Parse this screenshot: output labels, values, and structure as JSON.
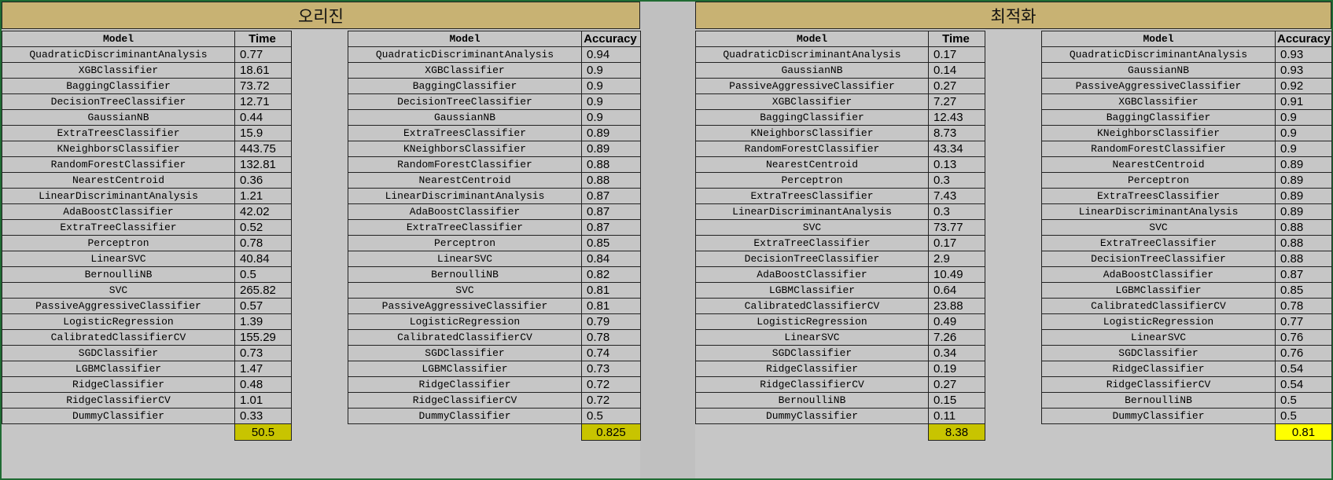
{
  "headers": {
    "original": "오리진",
    "optimized": "최적화"
  },
  "columns": {
    "model": "Model",
    "time": "Time",
    "accuracy": "Accuracy"
  },
  "colors": {
    "header_bg": "#c8b273",
    "cell_bg": "#c6c6c6",
    "sum_olive": "#c8c400",
    "sum_yellow": "#ffff00",
    "frame": "#1f6b33"
  },
  "original_time": {
    "rows": [
      [
        "QuadraticDiscriminantAnalysis",
        "0.77"
      ],
      [
        "XGBClassifier",
        "18.61"
      ],
      [
        "BaggingClassifier",
        "73.72"
      ],
      [
        "DecisionTreeClassifier",
        "12.71"
      ],
      [
        "GaussianNB",
        "0.44"
      ],
      [
        "ExtraTreesClassifier",
        "15.9"
      ],
      [
        "KNeighborsClassifier",
        "443.75"
      ],
      [
        "RandomForestClassifier",
        "132.81"
      ],
      [
        "NearestCentroid",
        "0.36"
      ],
      [
        "LinearDiscriminantAnalysis",
        "1.21"
      ],
      [
        "AdaBoostClassifier",
        "42.02"
      ],
      [
        "ExtraTreeClassifier",
        "0.52"
      ],
      [
        "Perceptron",
        "0.78"
      ],
      [
        "LinearSVC",
        "40.84"
      ],
      [
        "BernoulliNB",
        "0.5"
      ],
      [
        "SVC",
        "265.82"
      ],
      [
        "PassiveAggressiveClassifier",
        "0.57"
      ],
      [
        "LogisticRegression",
        "1.39"
      ],
      [
        "CalibratedClassifierCV",
        "155.29"
      ],
      [
        "SGDClassifier",
        "0.73"
      ],
      [
        "LGBMClassifier",
        "1.47"
      ],
      [
        "RidgeClassifier",
        "0.48"
      ],
      [
        "RidgeClassifierCV",
        "1.01"
      ],
      [
        "DummyClassifier",
        "0.33"
      ]
    ],
    "total": "50.5"
  },
  "original_accuracy": {
    "rows": [
      [
        "QuadraticDiscriminantAnalysis",
        "0.94"
      ],
      [
        "XGBClassifier",
        "0.9"
      ],
      [
        "BaggingClassifier",
        "0.9"
      ],
      [
        "DecisionTreeClassifier",
        "0.9"
      ],
      [
        "GaussianNB",
        "0.9"
      ],
      [
        "ExtraTreesClassifier",
        "0.89"
      ],
      [
        "KNeighborsClassifier",
        "0.89"
      ],
      [
        "RandomForestClassifier",
        "0.88"
      ],
      [
        "NearestCentroid",
        "0.88"
      ],
      [
        "LinearDiscriminantAnalysis",
        "0.87"
      ],
      [
        "AdaBoostClassifier",
        "0.87"
      ],
      [
        "ExtraTreeClassifier",
        "0.87"
      ],
      [
        "Perceptron",
        "0.85"
      ],
      [
        "LinearSVC",
        "0.84"
      ],
      [
        "BernoulliNB",
        "0.82"
      ],
      [
        "SVC",
        "0.81"
      ],
      [
        "PassiveAggressiveClassifier",
        "0.81"
      ],
      [
        "LogisticRegression",
        "0.79"
      ],
      [
        "CalibratedClassifierCV",
        "0.78"
      ],
      [
        "SGDClassifier",
        "0.74"
      ],
      [
        "LGBMClassifier",
        "0.73"
      ],
      [
        "RidgeClassifier",
        "0.72"
      ],
      [
        "RidgeClassifierCV",
        "0.72"
      ],
      [
        "DummyClassifier",
        "0.5"
      ]
    ],
    "total": "0.825"
  },
  "optimized_time": {
    "rows": [
      [
        "QuadraticDiscriminantAnalysis",
        "0.17"
      ],
      [
        "GaussianNB",
        "0.14"
      ],
      [
        "PassiveAggressiveClassifier",
        "0.27"
      ],
      [
        "XGBClassifier",
        "7.27"
      ],
      [
        "BaggingClassifier",
        "12.43"
      ],
      [
        "KNeighborsClassifier",
        "8.73"
      ],
      [
        "RandomForestClassifier",
        "43.34"
      ],
      [
        "NearestCentroid",
        "0.13"
      ],
      [
        "Perceptron",
        "0.3"
      ],
      [
        "ExtraTreesClassifier",
        "7.43"
      ],
      [
        "LinearDiscriminantAnalysis",
        "0.3"
      ],
      [
        "SVC",
        "73.77"
      ],
      [
        "ExtraTreeClassifier",
        "0.17"
      ],
      [
        "DecisionTreeClassifier",
        "2.9"
      ],
      [
        "AdaBoostClassifier",
        "10.49"
      ],
      [
        "LGBMClassifier",
        "0.64"
      ],
      [
        "CalibratedClassifierCV",
        "23.88"
      ],
      [
        "LogisticRegression",
        "0.49"
      ],
      [
        "LinearSVC",
        "7.26"
      ],
      [
        "SGDClassifier",
        "0.34"
      ],
      [
        "RidgeClassifier",
        "0.19"
      ],
      [
        "RidgeClassifierCV",
        "0.27"
      ],
      [
        "BernoulliNB",
        "0.15"
      ],
      [
        "DummyClassifier",
        "0.11"
      ]
    ],
    "total": "8.38"
  },
  "optimized_accuracy": {
    "rows": [
      [
        "QuadraticDiscriminantAnalysis",
        "0.93"
      ],
      [
        "GaussianNB",
        "0.93"
      ],
      [
        "PassiveAggressiveClassifier",
        "0.92"
      ],
      [
        "XGBClassifier",
        "0.91"
      ],
      [
        "BaggingClassifier",
        "0.9"
      ],
      [
        "KNeighborsClassifier",
        "0.9"
      ],
      [
        "RandomForestClassifier",
        "0.9"
      ],
      [
        "NearestCentroid",
        "0.89"
      ],
      [
        "Perceptron",
        "0.89"
      ],
      [
        "ExtraTreesClassifier",
        "0.89"
      ],
      [
        "LinearDiscriminantAnalysis",
        "0.89"
      ],
      [
        "SVC",
        "0.88"
      ],
      [
        "ExtraTreeClassifier",
        "0.88"
      ],
      [
        "DecisionTreeClassifier",
        "0.88"
      ],
      [
        "AdaBoostClassifier",
        "0.87"
      ],
      [
        "LGBMClassifier",
        "0.85"
      ],
      [
        "CalibratedClassifierCV",
        "0.78"
      ],
      [
        "LogisticRegression",
        "0.77"
      ],
      [
        "LinearSVC",
        "0.76"
      ],
      [
        "SGDClassifier",
        "0.76"
      ],
      [
        "RidgeClassifier",
        "0.54"
      ],
      [
        "RidgeClassifierCV",
        "0.54"
      ],
      [
        "BernoulliNB",
        "0.5"
      ],
      [
        "DummyClassifier",
        "0.5"
      ]
    ],
    "total": "0.81"
  }
}
